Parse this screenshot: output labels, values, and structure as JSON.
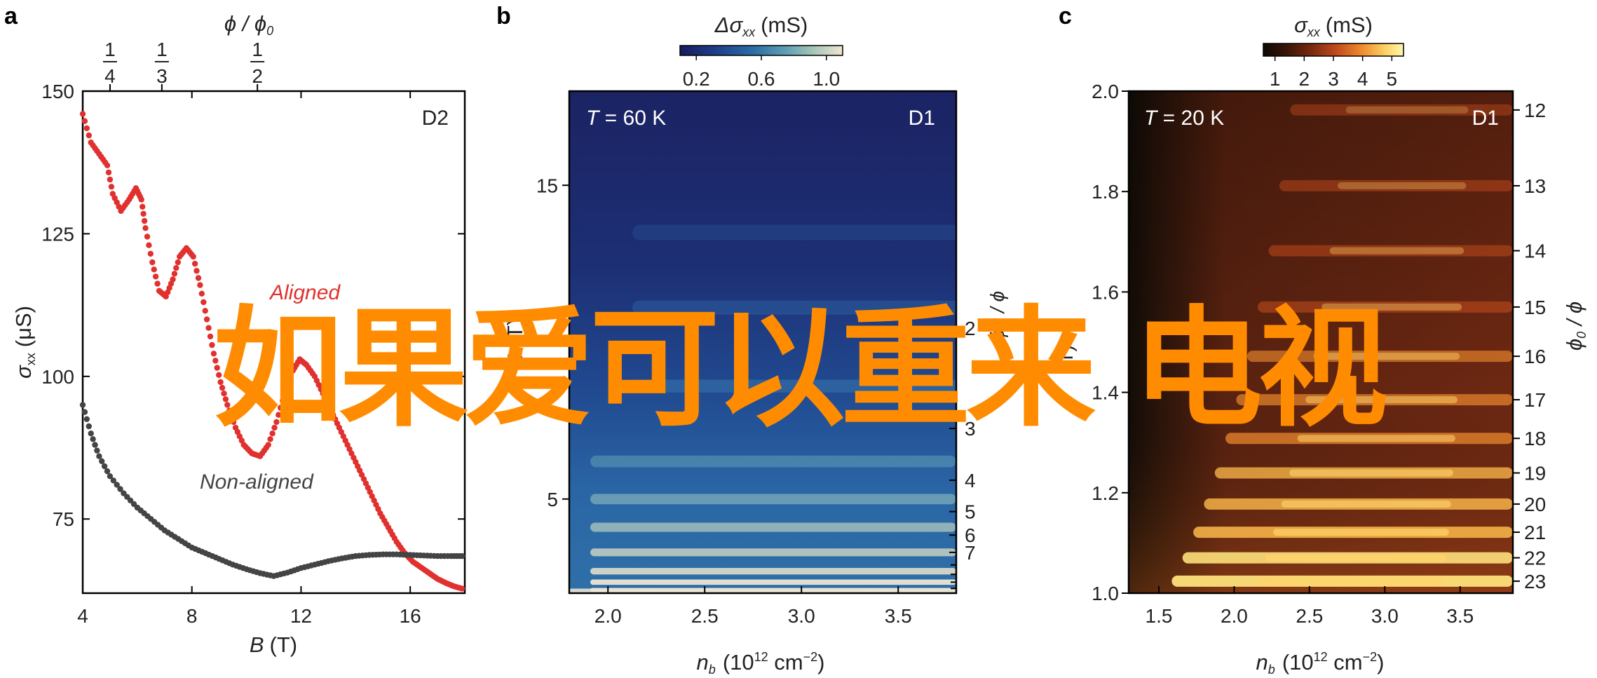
{
  "chart_data": [
    {
      "panel": "a",
      "type": "scatter",
      "device": "D2",
      "xlabel": {
        "var": "B",
        "unit": "(T)"
      },
      "ylabel": {
        "var": "σ",
        "sub": "xx",
        "unit": "(μS)"
      },
      "top_axis_label": "ϕ / ϕ0",
      "top_ticks": [
        {
          "frac": "1/4",
          "B": 5.0
        },
        {
          "frac": "1/3",
          "B": 6.9
        },
        {
          "frac": "1/2",
          "B": 10.4
        }
      ],
      "xlim": [
        4,
        18
      ],
      "ylim": [
        62,
        150
      ],
      "x_ticks": [
        4,
        8,
        12,
        16
      ],
      "y_ticks": [
        75,
        100,
        125,
        150
      ],
      "series": [
        {
          "name": "Aligned",
          "color": "#e0312f",
          "points": [
            [
              4,
              146
            ],
            [
              4.3,
              141
            ],
            [
              4.6,
              139
            ],
            [
              4.9,
              137
            ],
            [
              5.1,
              132
            ],
            [
              5.4,
              129
            ],
            [
              5.7,
              131
            ],
            [
              5.95,
              133
            ],
            [
              6.15,
              131
            ],
            [
              6.3,
              126
            ],
            [
              6.55,
              120
            ],
            [
              6.8,
              115
            ],
            [
              7.05,
              114
            ],
            [
              7.3,
              117
            ],
            [
              7.55,
              121
            ],
            [
              7.8,
              122.5
            ],
            [
              8.05,
              121
            ],
            [
              8.3,
              116
            ],
            [
              8.55,
              110
            ],
            [
              8.8,
              104
            ],
            [
              9.05,
              99
            ],
            [
              9.3,
              95
            ],
            [
              9.6,
              91
            ],
            [
              9.9,
              88
            ],
            [
              10.2,
              86.5
            ],
            [
              10.5,
              86
            ],
            [
              10.8,
              88
            ],
            [
              11.1,
              92
            ],
            [
              11.4,
              97
            ],
            [
              11.7,
              101
            ],
            [
              11.95,
              103
            ],
            [
              12.2,
              102
            ],
            [
              12.5,
              100
            ],
            [
              12.8,
              97
            ],
            [
              13.1,
              94
            ],
            [
              13.4,
              91
            ],
            [
              13.7,
              88
            ],
            [
              14,
              85
            ],
            [
              14.3,
              82
            ],
            [
              14.6,
              79
            ],
            [
              14.9,
              76
            ],
            [
              15.2,
              73.5
            ],
            [
              15.5,
              71
            ],
            [
              15.8,
              69
            ],
            [
              16.1,
              67.5
            ],
            [
              16.4,
              66.5
            ],
            [
              16.7,
              65.5
            ],
            [
              17,
              64.5
            ],
            [
              17.3,
              63.8
            ],
            [
              17.6,
              63.2
            ],
            [
              17.9,
              62.8
            ]
          ]
        },
        {
          "name": "Non-aligned",
          "color": "#444444",
          "points": [
            [
              4,
              95
            ],
            [
              4.3,
              90
            ],
            [
              4.6,
              86
            ],
            [
              5,
              82.5
            ],
            [
              5.5,
              79.5
            ],
            [
              6,
              77
            ],
            [
              6.5,
              75
            ],
            [
              7,
              73
            ],
            [
              7.5,
              71.5
            ],
            [
              8,
              70
            ],
            [
              8.5,
              69
            ],
            [
              9,
              68
            ],
            [
              9.5,
              67
            ],
            [
              10,
              66.2
            ],
            [
              10.5,
              65.5
            ],
            [
              11,
              65
            ],
            [
              11.5,
              65.6
            ],
            [
              12,
              66.4
            ],
            [
              12.5,
              67
            ],
            [
              13,
              67.6
            ],
            [
              13.5,
              68.1
            ],
            [
              14,
              68.5
            ],
            [
              14.5,
              68.7
            ],
            [
              15,
              68.8
            ],
            [
              15.5,
              68.8
            ],
            [
              16,
              68.7
            ],
            [
              16.5,
              68.6
            ],
            [
              17,
              68.5
            ],
            [
              17.5,
              68.5
            ],
            [
              17.9,
              68.5
            ]
          ]
        }
      ]
    },
    {
      "panel": "b",
      "type": "heatmap",
      "temperature_label": "T = 60 K",
      "device": "D1",
      "xlabel": {
        "var": "n",
        "sub": "b",
        "unit_pre": "(10",
        "sup": "12",
        "unit_mid": " cm",
        "sup2": "−2",
        "unit_post": ")"
      },
      "ylabel": {
        "var": "B",
        "unit": "(T)"
      },
      "colorbar": {
        "label_var": "Δσ",
        "label_sub": "xx",
        "label_unit": "(mS)",
        "ticks": [
          0.2,
          0.6,
          1.0
        ],
        "range": [
          0.1,
          1.1
        ]
      },
      "colormap": [
        "#161c5c",
        "#1e3f8a",
        "#2c6da6",
        "#5f9fb4",
        "#aac8b8",
        "#f0e6d2"
      ],
      "xlim": [
        1.8,
        3.8
      ],
      "ylim": [
        2,
        18
      ],
      "x_ticks": [
        2.0,
        2.5,
        3.0,
        3.5
      ],
      "y_ticks": [
        5,
        15
      ],
      "right_ticks_visible": [
        2,
        3,
        4,
        5,
        6,
        7
      ],
      "right_axis_label_partial": "ϕ0 / ϕ",
      "right_axis_label_unit": "(T)",
      "fringe_centers_B": [
        13.5,
        11.1,
        8.6,
        6.2,
        5.0,
        4.1,
        3.3,
        2.7,
        2.35,
        2.1
      ]
    },
    {
      "panel": "c",
      "type": "heatmap",
      "temperature_label": "T = 20 K",
      "device": "D1",
      "xlabel": {
        "var": "n",
        "sub": "b",
        "unit_pre": "(10",
        "sup": "12",
        "unit_mid": " cm",
        "sup2": "−2",
        "unit_post": ")"
      },
      "ylabel": {
        "var": "",
        "unit": ""
      },
      "colorbar": {
        "label_var": "σ",
        "label_sub": "xx",
        "label_unit": "(mS)",
        "ticks": [
          1,
          2,
          3,
          4,
          5
        ],
        "range": [
          0.6,
          5.4
        ]
      },
      "colormap": [
        "#0d0905",
        "#3a1508",
        "#7a2a10",
        "#c04a1c",
        "#ee8a2e",
        "#fbd264",
        "#fff6b0"
      ],
      "xlim": [
        1.3,
        3.85
      ],
      "ylim": [
        1.0,
        2.0
      ],
      "x_ticks": [
        1.5,
        2.0,
        2.5,
        3.0,
        3.5
      ],
      "y_ticks": [
        1.0,
        1.2,
        1.4,
        1.6,
        1.8,
        2.0
      ],
      "right_axis_label": "ϕ0 / ϕ",
      "right_ticks": [
        12,
        13,
        14,
        15,
        16,
        17,
        18,
        19,
        20,
        21,
        22,
        23
      ]
    }
  ],
  "overlay_text": "如果爱可以重来 电视"
}
